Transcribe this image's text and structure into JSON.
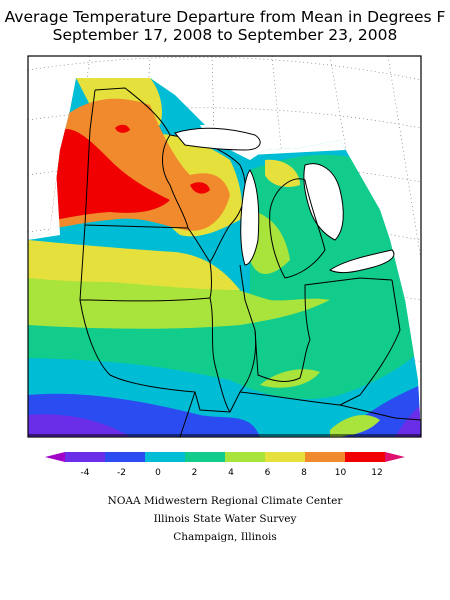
{
  "map": {
    "title_line1": "Average Temperature Departure from Mean in Degrees F",
    "title_line2": "September 17, 2008 to September 23, 2008",
    "units": "Degrees F",
    "legend": {
      "ticks": [
        "-4",
        "-2",
        "0",
        "2",
        "4",
        "6",
        "8",
        "10",
        "12"
      ],
      "colors": [
        "#a000c8",
        "#6a2de8",
        "#2b4cf0",
        "#00bcd4",
        "#12cc8c",
        "#a8e43c",
        "#e6e03c",
        "#f08a2c",
        "#f00000",
        "#e0106e"
      ]
    },
    "regions_visible": [
      "Minnesota",
      "Wisconsin",
      "Michigan",
      "Iowa",
      "Missouri",
      "Illinois",
      "Indiana",
      "Ohio",
      "Kentucky"
    ],
    "gradient_summary": "Warmest (+10 to +12) in northwest Minnesota; coolest (-2 to -4) in southern Missouri and southeastern Kentucky"
  },
  "credits": {
    "line1": "NOAA Midwestern Regional Climate Center",
    "line2": "Illinois State Water Survey",
    "line3": "Champaign, Illinois"
  }
}
